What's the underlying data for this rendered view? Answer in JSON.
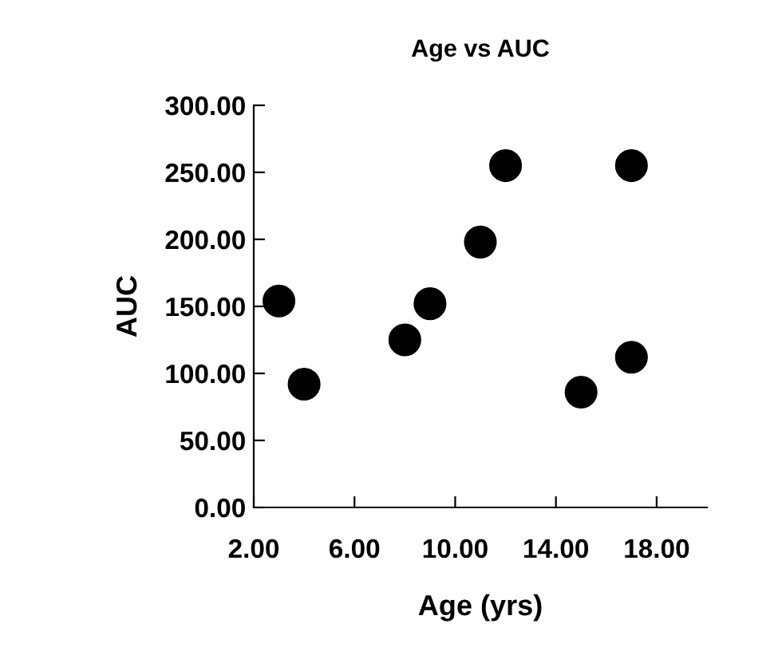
{
  "chart_data": {
    "type": "scatter",
    "title": "Age vs AUC",
    "xlabel": "Age (yrs)",
    "ylabel": "AUC",
    "x": [
      3,
      4,
      8,
      9,
      11,
      12,
      15,
      17,
      17
    ],
    "values": [
      154,
      92,
      125,
      152,
      198,
      255,
      86,
      255,
      112
    ],
    "color": "#000000",
    "marker": "circle",
    "xlim": [
      2,
      20
    ],
    "xticks": [
      {
        "value": 2,
        "label": "2.00"
      },
      {
        "value": 6,
        "label": "6.00"
      },
      {
        "value": 10,
        "label": "10.00"
      },
      {
        "value": 14,
        "label": "14.00"
      },
      {
        "value": 18,
        "label": "18.00"
      }
    ],
    "ylim": [
      0,
      300
    ],
    "yticks": [
      {
        "value": 0,
        "label": "0.00"
      },
      {
        "value": 50,
        "label": "50.00"
      },
      {
        "value": 100,
        "label": "100.00"
      },
      {
        "value": 150,
        "label": "150.00"
      },
      {
        "value": 200,
        "label": "200.00"
      },
      {
        "value": 250,
        "label": "250.00"
      },
      {
        "value": 300,
        "label": "300.00"
      }
    ],
    "grid": false,
    "legend": false
  }
}
